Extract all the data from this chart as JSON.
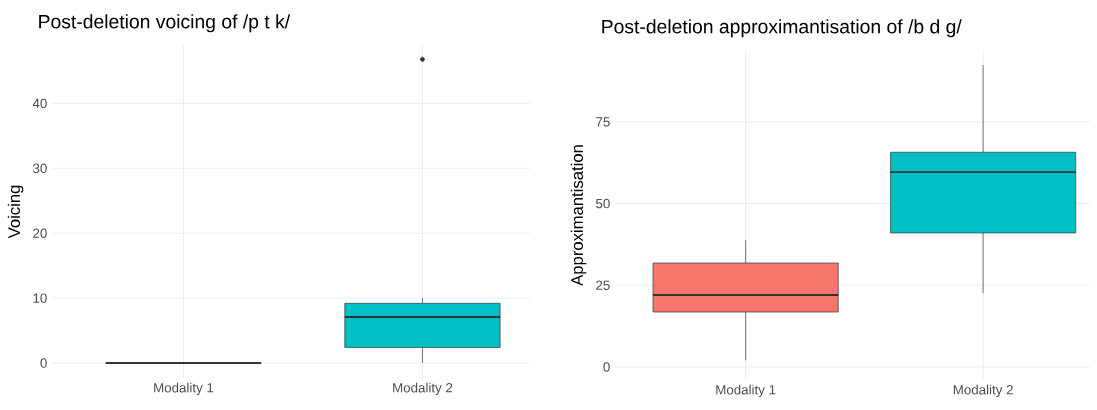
{
  "chart_data": [
    {
      "type": "box",
      "title": "Post-deletion voicing of /p t k/",
      "ylabel": "Voicing",
      "categories": [
        "Modality 1",
        "Modality 2"
      ],
      "colors": [
        null,
        "#00bfc4"
      ],
      "boxes": [
        {
          "low": 0,
          "q1": 0,
          "median": 0,
          "q3": 0,
          "high": 0
        },
        {
          "low": 0,
          "q1": 2.4,
          "median": 7.1,
          "q3": 9.2,
          "high": 10,
          "outliers": [
            46.8
          ]
        }
      ],
      "ylim": [
        -2.3,
        49
      ],
      "yticks": [
        0,
        10,
        20,
        30,
        40
      ],
      "grid": true
    },
    {
      "type": "box",
      "title": "Post-deletion approximantisation of /b d g/",
      "ylabel": "Approximantisation",
      "categories": [
        "Modality 1",
        "Modality 2"
      ],
      "colors": [
        "#f8766d",
        "#00bfc4"
      ],
      "boxes": [
        {
          "low": 2,
          "q1": 16.8,
          "median": 22,
          "q3": 31.8,
          "high": 38.8
        },
        {
          "low": 22.6,
          "q1": 41,
          "median": 59.6,
          "q3": 65.7,
          "high": 92.4
        }
      ],
      "ylim": [
        -4,
        97
      ],
      "yticks": [
        0,
        25,
        50,
        75
      ],
      "grid": true
    }
  ]
}
